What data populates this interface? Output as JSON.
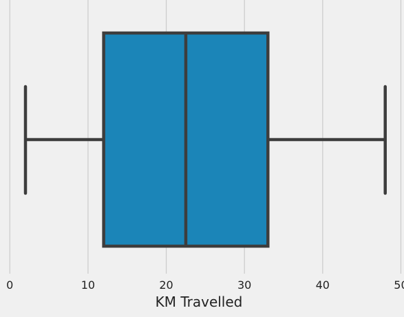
{
  "chart_data": {
    "type": "box",
    "orientation": "horizontal",
    "xlabel": "KM Travelled",
    "ylabel": "",
    "title": "",
    "xlim": [
      -0.2,
      50.4
    ],
    "xticks": [
      0,
      10,
      20,
      30,
      40,
      50
    ],
    "xtick_labels": [
      "0",
      "10",
      "20",
      "30",
      "40",
      "50"
    ],
    "grid": "vertical",
    "box": {
      "whisker_low": 2,
      "q1": 12,
      "median": 22.5,
      "q3": 33,
      "whisker_high": 48
    },
    "colors": {
      "box_fill": "#1b85b8",
      "line": "#3d3d3d",
      "grid": "#cbcbcb",
      "background": "#f0f0f0"
    }
  }
}
